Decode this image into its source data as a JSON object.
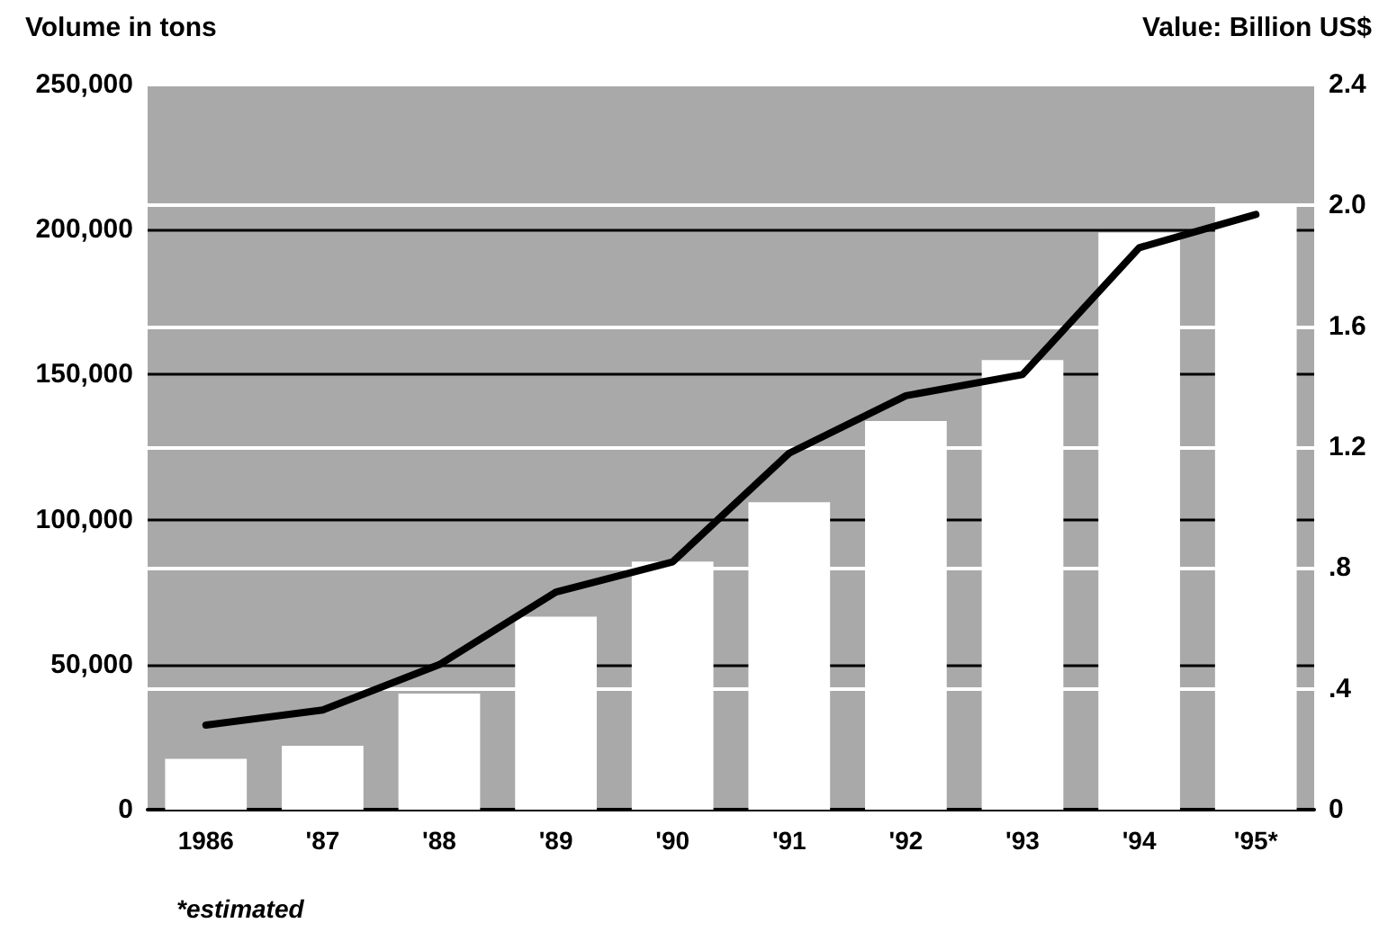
{
  "chart_data": {
    "type": "bar",
    "ylabel": "Volume in tons",
    "y2label": "Value: Billion US$",
    "categories": [
      "1986",
      "'87",
      "'88",
      "'89",
      "'90",
      "'91",
      "'92",
      "'93",
      "'94",
      "'95*"
    ],
    "series": [
      {
        "color": "#ffffff",
        "values": [
          17500,
          22000,
          40000,
          66500,
          85500,
          106000,
          134000,
          155000,
          199000,
          209000
        ]
      },
      {
        "type": "line",
        "axis": "y2",
        "color": "#000000",
        "values": [
          0.28,
          0.33,
          0.48,
          0.72,
          0.82,
          1.18,
          1.37,
          1.44,
          1.86,
          1.97
        ]
      }
    ],
    "ylim": [
      0,
      250000
    ],
    "yticks": [
      {
        "value": 0,
        "label": "0"
      },
      {
        "value": 50000,
        "label": "50,000"
      },
      {
        "value": 100000,
        "label": "100,000"
      },
      {
        "value": 150000,
        "label": "150,000"
      },
      {
        "value": 200000,
        "label": "200,000"
      },
      {
        "value": 250000,
        "label": "250,000"
      }
    ],
    "y2lim": [
      0,
      2.4
    ],
    "y2ticks": [
      0,
      {
        "value": 0.4,
        "label": ".4"
      },
      {
        "value": 0.8,
        "label": ".8"
      },
      1.2,
      1.6,
      {
        "value": 2,
        "label": "2.0"
      },
      2.4
    ],
    "grid": true,
    "marker": "none",
    "line_style": "solid",
    "annotations": [
      "*estimated"
    ]
  }
}
